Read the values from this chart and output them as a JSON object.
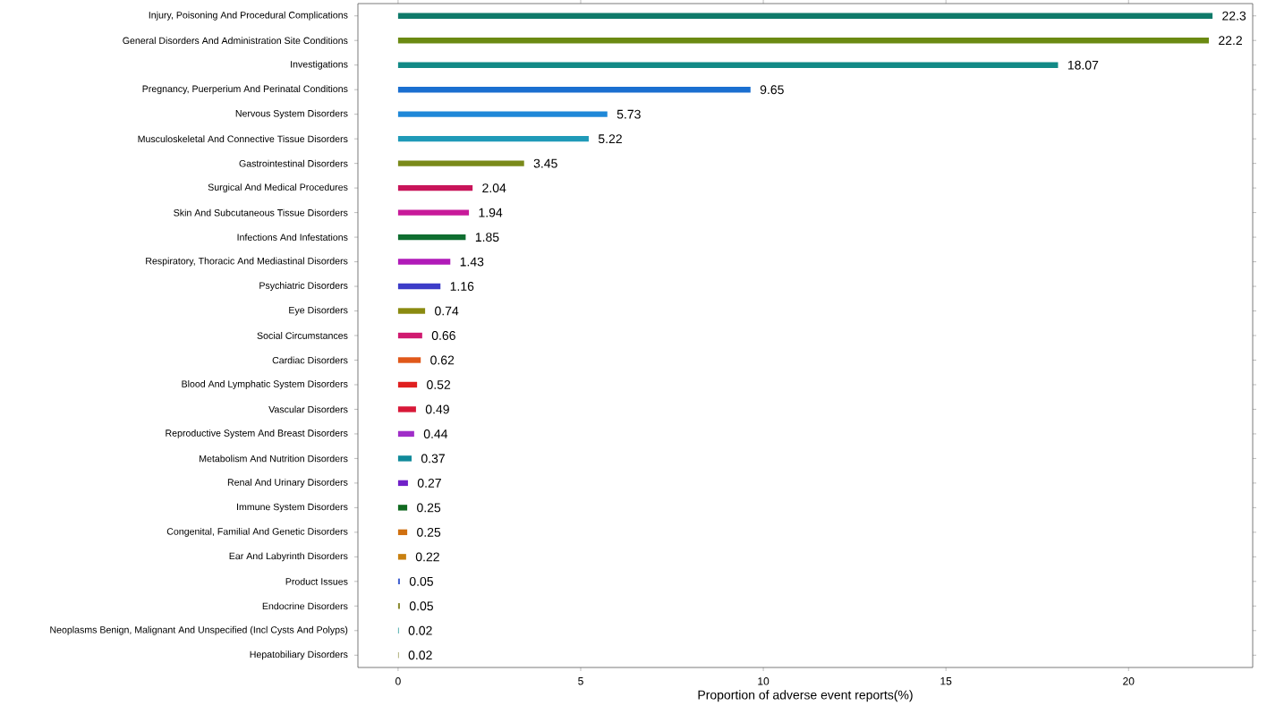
{
  "chart_data": {
    "type": "bar",
    "orientation": "horizontal",
    "xlabel": "Proportion of adverse event reports(%)",
    "categories": [
      "Injury, Poisoning And Procedural Complications",
      "General Disorders And Administration Site Conditions",
      "Investigations",
      "Pregnancy, Puerperium And Perinatal Conditions",
      "Nervous System Disorders",
      "Musculoskeletal And Connective Tissue Disorders",
      "Gastrointestinal Disorders",
      "Surgical And Medical Procedures",
      "Skin And Subcutaneous Tissue Disorders",
      "Infections And Infestations",
      "Respiratory, Thoracic And Mediastinal Disorders",
      "Psychiatric Disorders",
      "Eye Disorders",
      "Social Circumstances",
      "Cardiac Disorders",
      "Blood And Lymphatic System Disorders",
      "Vascular Disorders",
      "Reproductive System And Breast Disorders",
      "Metabolism And Nutrition Disorders",
      "Renal And Urinary Disorders",
      "Immune System Disorders",
      "Congenital, Familial And Genetic Disorders",
      "Ear And Labyrinth Disorders",
      "Product Issues",
      "Endocrine Disorders",
      "Neoplasms Benign, Malignant And Unspecified (Incl Cysts And Polyps)",
      "Hepatobiliary Disorders"
    ],
    "values": [
      22.3,
      22.2,
      18.07,
      9.65,
      5.73,
      5.22,
      3.45,
      2.04,
      1.94,
      1.85,
      1.43,
      1.16,
      0.74,
      0.66,
      0.62,
      0.52,
      0.49,
      0.44,
      0.37,
      0.27,
      0.25,
      0.25,
      0.22,
      0.05,
      0.05,
      0.02,
      0.02
    ],
    "colors": [
      "#0f7a6a",
      "#6b8a12",
      "#128a86",
      "#1a6fd0",
      "#1f88d8",
      "#1f9ab8",
      "#7a8a1a",
      "#c8145a",
      "#c81a9a",
      "#0f6e30",
      "#b01ab8",
      "#3c3cc8",
      "#8a8a10",
      "#d01a70",
      "#e0581a",
      "#e02020",
      "#d81838",
      "#a02ec8",
      "#108a9a",
      "#7020c8",
      "#106a20",
      "#d07010",
      "#c88010",
      "#4060d0",
      "#8a8a30",
      "#30a0a0",
      "#a0a060"
    ],
    "data_labels": true,
    "xlim": [
      -1.1,
      23.4
    ],
    "xticks": [
      0,
      5,
      10,
      15,
      20
    ]
  }
}
